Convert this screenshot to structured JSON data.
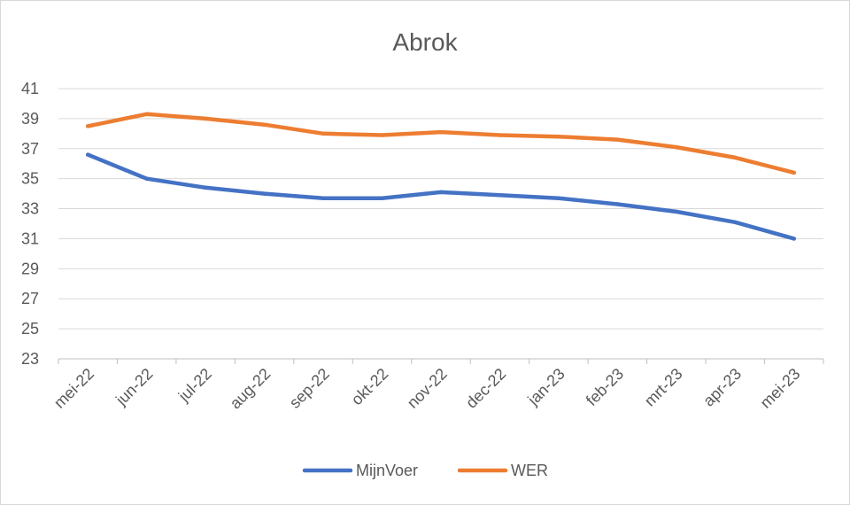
{
  "chart_data": {
    "type": "line",
    "title": "Abrok",
    "xlabel": "",
    "ylabel": "",
    "categories": [
      "mei-22",
      "jun-22",
      "jul-22",
      "aug-22",
      "sep-22",
      "okt-22",
      "nov-22",
      "dec-22",
      "jan-23",
      "feb-23",
      "mrt-23",
      "apr-23",
      "mei-23"
    ],
    "ylim": [
      23,
      41
    ],
    "yticks": [
      "23",
      "25",
      "27",
      "29",
      "31",
      "33",
      "35",
      "37",
      "39",
      "41"
    ],
    "grid": true,
    "legend_position": "bottom",
    "series": [
      {
        "name": "MijnVoer",
        "color": "#4472C4",
        "values": [
          36.6,
          35.0,
          34.4,
          34.0,
          33.7,
          33.7,
          34.1,
          33.9,
          33.7,
          33.3,
          32.8,
          32.1,
          31.0
        ]
      },
      {
        "name": "WER",
        "color": "#ED7D31",
        "values": [
          38.5,
          39.3,
          39.0,
          38.6,
          38.0,
          37.9,
          38.1,
          37.9,
          37.8,
          37.6,
          37.1,
          36.4,
          35.4
        ]
      }
    ]
  }
}
